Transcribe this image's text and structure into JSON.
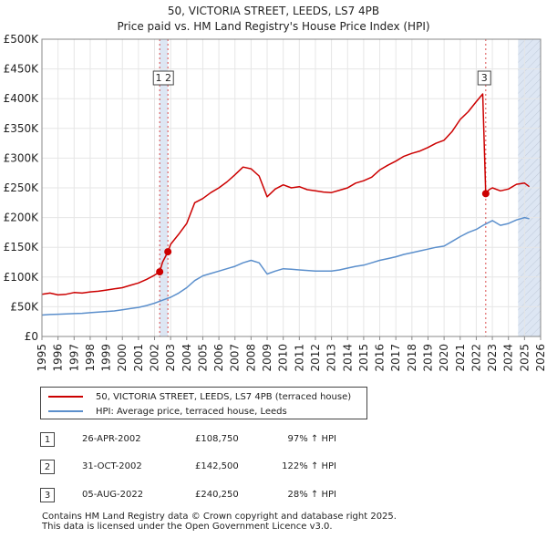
{
  "chart_data": {
    "type": "line",
    "title": "50, VICTORIA STREET, LEEDS, LS7 4PB",
    "subtitle": "Price paid vs. HM Land Registry's House Price Index (HPI)",
    "xlim": [
      1995,
      2026
    ],
    "ylim": [
      0,
      500000
    ],
    "x_ticks": [
      "1995",
      "1996",
      "1997",
      "1998",
      "1999",
      "2000",
      "2001",
      "2002",
      "2003",
      "2004",
      "2005",
      "2006",
      "2007",
      "2008",
      "2009",
      "2010",
      "2011",
      "2012",
      "2013",
      "2014",
      "2015",
      "2016",
      "2017",
      "2018",
      "2019",
      "2020",
      "2021",
      "2022",
      "2023",
      "2024",
      "2025",
      "2026"
    ],
    "y_ticks": [
      {
        "value": 0,
        "label": "£0"
      },
      {
        "value": 50000,
        "label": "£50K"
      },
      {
        "value": 100000,
        "label": "£100K"
      },
      {
        "value": 150000,
        "label": "£150K"
      },
      {
        "value": 200000,
        "label": "£200K"
      },
      {
        "value": 250000,
        "label": "£250K"
      },
      {
        "value": 300000,
        "label": "£300K"
      },
      {
        "value": 350000,
        "label": "£350K"
      },
      {
        "value": 400000,
        "label": "£400K"
      },
      {
        "value": 450000,
        "label": "£450K"
      },
      {
        "value": 500000,
        "label": "£500K"
      }
    ],
    "shaded_regions": [
      {
        "from": 2002.32,
        "to": 2002.83,
        "color": "#dde6f3"
      },
      {
        "from": 2024.6,
        "to": 2026,
        "color": "#dde6f3",
        "hatched": true
      }
    ],
    "series": [
      {
        "name": "50, VICTORIA STREET, LEEDS, LS7 4PB (terraced house)",
        "color": "#cc0000",
        "points": [
          [
            1995.0,
            71000
          ],
          [
            1995.5,
            73000
          ],
          [
            1996.0,
            70000
          ],
          [
            1996.5,
            71000
          ],
          [
            1997.0,
            74000
          ],
          [
            1997.5,
            73000
          ],
          [
            1998.0,
            75000
          ],
          [
            1998.5,
            76000
          ],
          [
            1999.0,
            78000
          ],
          [
            1999.5,
            80000
          ],
          [
            2000.0,
            82000
          ],
          [
            2000.5,
            86000
          ],
          [
            2001.0,
            90000
          ],
          [
            2001.5,
            96000
          ],
          [
            2002.0,
            103000
          ],
          [
            2002.32,
            108750
          ],
          [
            2002.5,
            125000
          ],
          [
            2002.83,
            142500
          ],
          [
            2003.0,
            155000
          ],
          [
            2003.5,
            172000
          ],
          [
            2004.0,
            190000
          ],
          [
            2004.5,
            225000
          ],
          [
            2005.0,
            232000
          ],
          [
            2005.5,
            242000
          ],
          [
            2006.0,
            250000
          ],
          [
            2006.5,
            260000
          ],
          [
            2007.0,
            272000
          ],
          [
            2007.5,
            285000
          ],
          [
            2008.0,
            282000
          ],
          [
            2008.5,
            270000
          ],
          [
            2009.0,
            235000
          ],
          [
            2009.5,
            248000
          ],
          [
            2010.0,
            255000
          ],
          [
            2010.5,
            250000
          ],
          [
            2011.0,
            252000
          ],
          [
            2011.5,
            247000
          ],
          [
            2012.0,
            245000
          ],
          [
            2012.5,
            243000
          ],
          [
            2013.0,
            242000
          ],
          [
            2013.5,
            246000
          ],
          [
            2014.0,
            250000
          ],
          [
            2014.5,
            258000
          ],
          [
            2015.0,
            262000
          ],
          [
            2015.5,
            268000
          ],
          [
            2016.0,
            280000
          ],
          [
            2016.5,
            288000
          ],
          [
            2017.0,
            295000
          ],
          [
            2017.5,
            303000
          ],
          [
            2018.0,
            308000
          ],
          [
            2018.5,
            312000
          ],
          [
            2019.0,
            318000
          ],
          [
            2019.5,
            325000
          ],
          [
            2020.0,
            330000
          ],
          [
            2020.5,
            345000
          ],
          [
            2021.0,
            365000
          ],
          [
            2021.5,
            378000
          ],
          [
            2022.0,
            395000
          ],
          [
            2022.4,
            408000
          ],
          [
            2022.59,
            240250
          ],
          [
            2022.8,
            247000
          ],
          [
            2023.0,
            250000
          ],
          [
            2023.5,
            245000
          ],
          [
            2024.0,
            248000
          ],
          [
            2024.5,
            256000
          ],
          [
            2025.0,
            258000
          ],
          [
            2025.3,
            252000
          ]
        ]
      },
      {
        "name": "HPI: Average price, terraced house, Leeds",
        "color": "#5b8fcc",
        "points": [
          [
            1995.0,
            36000
          ],
          [
            1995.5,
            37000
          ],
          [
            1996.0,
            37500
          ],
          [
            1996.5,
            38000
          ],
          [
            1997.0,
            38500
          ],
          [
            1997.5,
            39000
          ],
          [
            1998.0,
            40000
          ],
          [
            1998.5,
            41000
          ],
          [
            1999.0,
            42000
          ],
          [
            1999.5,
            43000
          ],
          [
            2000.0,
            45000
          ],
          [
            2000.5,
            47000
          ],
          [
            2001.0,
            49000
          ],
          [
            2001.5,
            52000
          ],
          [
            2002.0,
            56000
          ],
          [
            2002.5,
            61000
          ],
          [
            2003.0,
            66000
          ],
          [
            2003.5,
            73000
          ],
          [
            2004.0,
            82000
          ],
          [
            2004.5,
            94000
          ],
          [
            2005.0,
            102000
          ],
          [
            2005.5,
            106000
          ],
          [
            2006.0,
            110000
          ],
          [
            2006.5,
            114000
          ],
          [
            2007.0,
            118000
          ],
          [
            2007.5,
            124000
          ],
          [
            2008.0,
            128000
          ],
          [
            2008.5,
            124000
          ],
          [
            2009.0,
            105000
          ],
          [
            2009.5,
            110000
          ],
          [
            2010.0,
            114000
          ],
          [
            2010.5,
            113000
          ],
          [
            2011.0,
            112000
          ],
          [
            2011.5,
            111000
          ],
          [
            2012.0,
            110000
          ],
          [
            2012.5,
            110000
          ],
          [
            2013.0,
            110000
          ],
          [
            2013.5,
            112000
          ],
          [
            2014.0,
            115000
          ],
          [
            2014.5,
            118000
          ],
          [
            2015.0,
            120000
          ],
          [
            2015.5,
            124000
          ],
          [
            2016.0,
            128000
          ],
          [
            2016.5,
            131000
          ],
          [
            2017.0,
            134000
          ],
          [
            2017.5,
            138000
          ],
          [
            2018.0,
            141000
          ],
          [
            2018.5,
            144000
          ],
          [
            2019.0,
            147000
          ],
          [
            2019.5,
            150000
          ],
          [
            2020.0,
            152000
          ],
          [
            2020.5,
            160000
          ],
          [
            2021.0,
            168000
          ],
          [
            2021.5,
            175000
          ],
          [
            2022.0,
            180000
          ],
          [
            2022.5,
            188000
          ],
          [
            2023.0,
            195000
          ],
          [
            2023.5,
            187000
          ],
          [
            2024.0,
            190000
          ],
          [
            2024.5,
            196000
          ],
          [
            2025.0,
            200000
          ],
          [
            2025.3,
            198000
          ]
        ]
      }
    ],
    "sale_markers": [
      {
        "label": "1",
        "year": 2002.32,
        "price": 108750
      },
      {
        "label": "2",
        "year": 2002.83,
        "price": 142500
      },
      {
        "label": "3",
        "year": 2022.59,
        "price": 240250
      }
    ],
    "marker_box_labels": [
      {
        "text": "1 2",
        "year": 2002.55
      },
      {
        "text": "3",
        "year": 2022.5
      }
    ]
  },
  "legend": {
    "items": [
      {
        "label": "50, VICTORIA STREET, LEEDS, LS7 4PB (terraced house)",
        "color": "#cc0000"
      },
      {
        "label": "HPI: Average price, terraced house, Leeds",
        "color": "#5b8fcc"
      }
    ]
  },
  "sales": [
    {
      "num": "1",
      "date": "26-APR-2002",
      "price": "£108,750",
      "hpi": "97% ↑ HPI"
    },
    {
      "num": "2",
      "date": "31-OCT-2002",
      "price": "£142,500",
      "hpi": "122% ↑ HPI"
    },
    {
      "num": "3",
      "date": "05-AUG-2022",
      "price": "£240,250",
      "hpi": "28% ↑ HPI"
    }
  ],
  "footer": {
    "line1": "Contains HM Land Registry data © Crown copyright and database right 2025.",
    "line2": "This data is licensed under the Open Government Licence v3.0."
  }
}
